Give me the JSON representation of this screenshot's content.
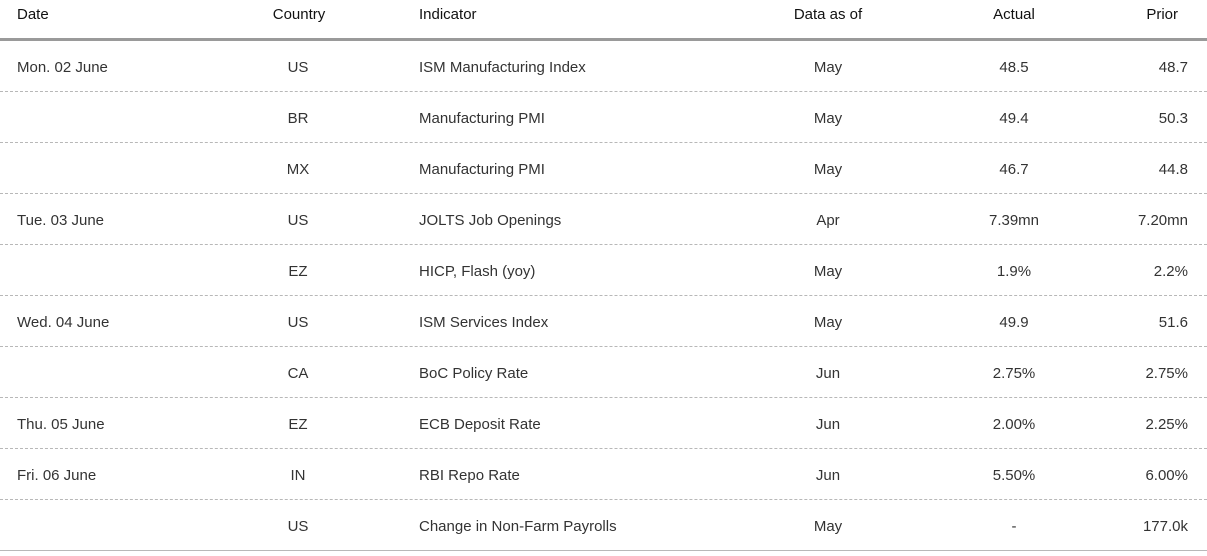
{
  "headers": {
    "date": "Date",
    "country": "Country",
    "indicator": "Indicator",
    "data_as_of": "Data as of",
    "actual": "Actual",
    "prior": "Prior"
  },
  "rows": [
    {
      "date": "Mon. 02 June",
      "country": "US",
      "indicator": "ISM Manufacturing Index",
      "data_as_of": "May",
      "actual": "48.5",
      "prior": "48.7"
    },
    {
      "date": "",
      "country": "BR",
      "indicator": "Manufacturing PMI",
      "data_as_of": "May",
      "actual": "49.4",
      "prior": "50.3"
    },
    {
      "date": "",
      "country": "MX",
      "indicator": "Manufacturing PMI",
      "data_as_of": "May",
      "actual": "46.7",
      "prior": "44.8"
    },
    {
      "date": "Tue. 03 June",
      "country": "US",
      "indicator": "JOLTS Job Openings",
      "data_as_of": "Apr",
      "actual": "7.39mn",
      "prior": "7.20mn"
    },
    {
      "date": "",
      "country": "EZ",
      "indicator": "HICP, Flash (yoy)",
      "data_as_of": "May",
      "actual": "1.9%",
      "prior": "2.2%"
    },
    {
      "date": "Wed. 04 June",
      "country": "US",
      "indicator": "ISM Services Index",
      "data_as_of": "May",
      "actual": "49.9",
      "prior": "51.6"
    },
    {
      "date": "",
      "country": "CA",
      "indicator": "BoC Policy Rate",
      "data_as_of": "Jun",
      "actual": "2.75%",
      "prior": "2.75%"
    },
    {
      "date": "Thu. 05 June",
      "country": "EZ",
      "indicator": "ECB Deposit Rate",
      "data_as_of": "Jun",
      "actual": "2.00%",
      "prior": "2.25%"
    },
    {
      "date": "Fri. 06 June",
      "country": "IN",
      "indicator": "RBI Repo Rate",
      "data_as_of": "Jun",
      "actual": "5.50%",
      "prior": "6.00%"
    },
    {
      "date": "",
      "country": "US",
      "indicator": "Change in Non-Farm Payrolls",
      "data_as_of": "May",
      "actual": "-",
      "prior": "177.0k"
    }
  ]
}
